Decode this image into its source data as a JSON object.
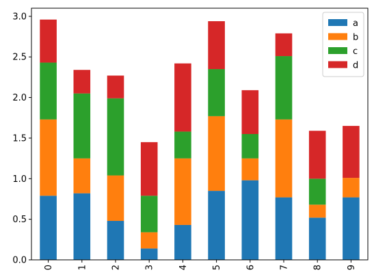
{
  "chart_data": {
    "type": "bar",
    "stacked": true,
    "categories": [
      "0",
      "1",
      "2",
      "3",
      "4",
      "5",
      "6",
      "7",
      "8",
      "9"
    ],
    "series": [
      {
        "name": "a",
        "color": "#1f77b4",
        "values": [
          0.79,
          0.82,
          0.48,
          0.14,
          0.43,
          0.85,
          0.98,
          0.77,
          0.52,
          0.77
        ]
      },
      {
        "name": "b",
        "color": "#ff7f0e",
        "values": [
          0.94,
          0.43,
          0.56,
          0.2,
          0.82,
          0.92,
          0.27,
          0.96,
          0.16,
          0.24
        ]
      },
      {
        "name": "c",
        "color": "#2ca02c",
        "values": [
          0.7,
          0.8,
          0.95,
          0.45,
          0.33,
          0.58,
          0.3,
          0.78,
          0.32,
          0.0
        ]
      },
      {
        "name": "d",
        "color": "#d62728",
        "values": [
          0.53,
          0.29,
          0.28,
          0.66,
          0.84,
          0.59,
          0.54,
          0.28,
          0.59,
          0.64
        ]
      }
    ],
    "ylim": [
      0,
      3.1
    ],
    "yticks": [
      "0.0",
      "0.5",
      "1.0",
      "1.5",
      "2.0",
      "2.5",
      "3.0"
    ],
    "xlabel": "",
    "ylabel": "",
    "title": "",
    "grid": false,
    "legend_position": "top-right"
  }
}
